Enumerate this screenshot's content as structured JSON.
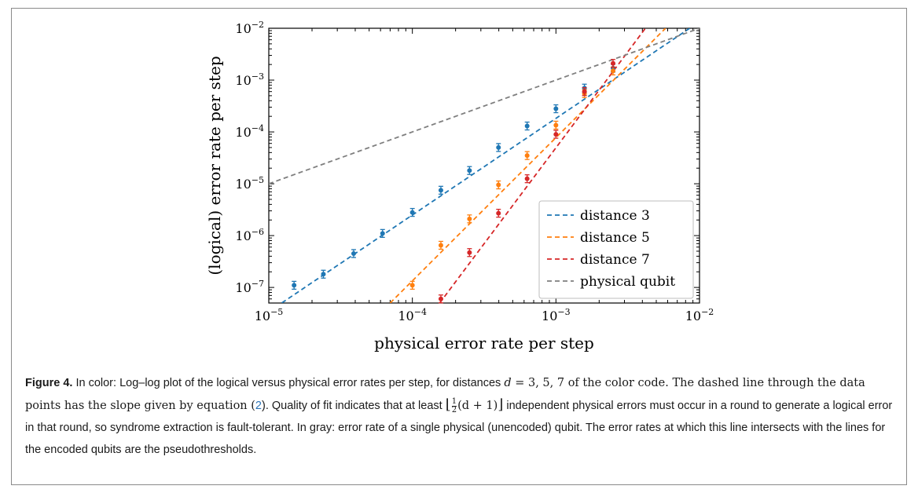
{
  "chart_data": {
    "type": "scatter",
    "log_x": true,
    "log_y": true,
    "xlim": [
      1e-05,
      0.01
    ],
    "ylim": [
      5e-08,
      0.01
    ],
    "xlabel": "physical error rate per step",
    "ylabel": "(logical) error rate per step",
    "x_ticks": [
      {
        "value": 1e-05,
        "exp": "−5"
      },
      {
        "value": 0.0001,
        "exp": "−4"
      },
      {
        "value": 0.001,
        "exp": "−3"
      },
      {
        "value": 0.01,
        "exp": "−2"
      }
    ],
    "y_ticks": [
      {
        "value": 1e-07,
        "exp": "−7"
      },
      {
        "value": 1e-06,
        "exp": "−6"
      },
      {
        "value": 1e-05,
        "exp": "−5"
      },
      {
        "value": 0.0001,
        "exp": "−4"
      },
      {
        "value": 0.001,
        "exp": "−3"
      },
      {
        "value": 0.01,
        "exp": "−2"
      }
    ],
    "legend_placement": "lower-right",
    "grid": false,
    "series": [
      {
        "name": "distance 3",
        "color": "#1f77b4",
        "points": [
          {
            "x": 1.5e-05,
            "y": 1.1e-07
          },
          {
            "x": 2.4e-05,
            "y": 1.8e-07
          },
          {
            "x": 3.9e-05,
            "y": 4.5e-07
          },
          {
            "x": 6.2e-05,
            "y": 1.1e-06
          },
          {
            "x": 0.0001,
            "y": 2.8e-06
          },
          {
            "x": 0.000158,
            "y": 7.5e-06
          },
          {
            "x": 0.00025,
            "y": 1.8e-05
          },
          {
            "x": 0.000398,
            "y": 5e-05
          },
          {
            "x": 0.00063,
            "y": 0.00013
          },
          {
            "x": 0.001,
            "y": 0.00028
          },
          {
            "x": 0.00158,
            "y": 0.0007
          },
          {
            "x": 0.0025,
            "y": 0.0017
          }
        ],
        "fit": {
          "x": [
            1e-05,
            0.01
          ],
          "y": [
            3.4e-08,
            0.0134
          ]
        }
      },
      {
        "name": "distance 5",
        "color": "#ff7f0e",
        "points": [
          {
            "x": 0.0001,
            "y": 1.1e-07
          },
          {
            "x": 0.000158,
            "y": 6.5e-07
          },
          {
            "x": 0.00025,
            "y": 2.1e-06
          },
          {
            "x": 0.000398,
            "y": 9.5e-06
          },
          {
            "x": 0.00063,
            "y": 3.5e-05
          },
          {
            "x": 0.001,
            "y": 0.000135
          },
          {
            "x": 0.00158,
            "y": 0.00055
          },
          {
            "x": 0.0025,
            "y": 0.0015
          }
        ],
        "fit": {
          "x": [
            7e-05,
            0.0058
          ],
          "y": [
            5e-08,
            0.01
          ]
        }
      },
      {
        "name": "distance 7",
        "color": "#d62728",
        "points": [
          {
            "x": 0.000158,
            "y": 6e-08
          },
          {
            "x": 0.00025,
            "y": 4.7e-07
          },
          {
            "x": 0.000398,
            "y": 2.7e-06
          },
          {
            "x": 0.00063,
            "y": 1.25e-05
          },
          {
            "x": 0.001,
            "y": 9e-05
          },
          {
            "x": 0.00158,
            "y": 0.0006
          },
          {
            "x": 0.0025,
            "y": 0.0021
          }
        ],
        "fit": {
          "x": [
            0.000155,
            0.0042
          ],
          "y": [
            5e-08,
            0.01
          ]
        }
      },
      {
        "name": "physical qubit",
        "color": "#7f7f7f",
        "points": [],
        "fit": {
          "x": [
            1e-05,
            0.01
          ],
          "y": [
            1e-05,
            0.01
          ]
        }
      }
    ]
  },
  "caption": {
    "label": "Figure 4.",
    "t1": " In color: Log–log plot of the logical versus physical error rates per step, for distances ",
    "d": "d",
    "t2": " = 3, 5, 7 of the color code. The dashed line through the data points has the slope given by equation (",
    "eqref": "2",
    "t3": "). Quality of fit indicates that at least ",
    "floor_left": "⌊",
    "frac_num": "1",
    "frac_den": "2",
    "floor_expr": "(d + 1)",
    "floor_right": "⌋",
    "t4": " independent physical errors must occur in a round to generate a logical error in that round, so syndrome extraction is fault-tolerant. In gray: error rate of a single physical (unencoded) qubit. The error rates at which this line intersects with the lines for the encoded qubits are the pseudothresholds."
  }
}
